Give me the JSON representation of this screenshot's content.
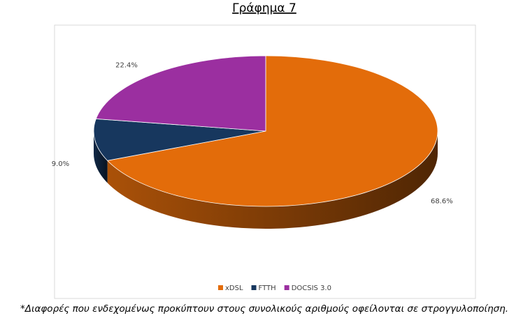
{
  "chart_data": {
    "type": "pie",
    "title": "Γράφημα 7",
    "categories": [
      "xDSL",
      "FTTH",
      "DOCSIS 3.0"
    ],
    "values": [
      68.6,
      9.0,
      22.4
    ],
    "value_labels": [
      "68.6%",
      "9.0%",
      "22.4%"
    ],
    "colors": [
      "#e36c0a",
      "#17375e",
      "#9b2fa0"
    ],
    "legend": "bottom"
  },
  "footnote": "*Διαφορές που ενδεχομένως προκύπτουν στους συνολικούς αριθμούς οφείλονται σε στρογγυλοποίηση."
}
